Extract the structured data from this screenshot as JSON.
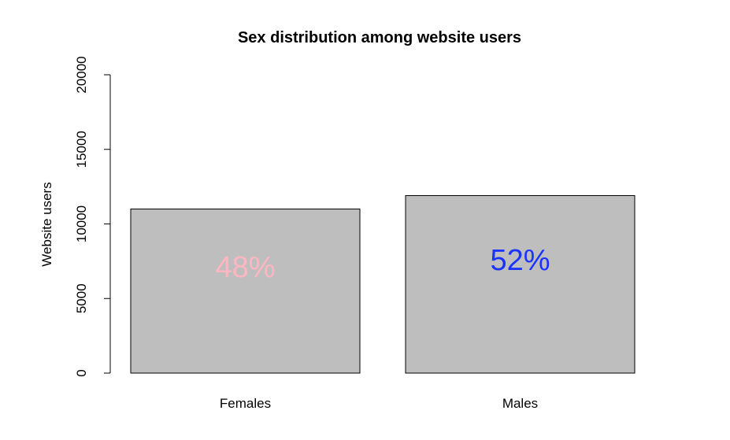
{
  "chart_data": {
    "type": "bar",
    "title": "Sex distribution among website users",
    "xlabel": "",
    "ylabel": "Website users",
    "categories": [
      "Females",
      "Males"
    ],
    "values": [
      11000,
      11900
    ],
    "ylim": [
      0,
      20000
    ],
    "yticks": [
      0,
      5000,
      10000,
      15000,
      20000
    ],
    "bar_color": "#bebebe",
    "bar_labels": [
      {
        "text": "48%",
        "color": "#ffb6c1"
      },
      {
        "text": "52%",
        "color": "#1a33ff"
      }
    ],
    "grid": false,
    "legend": "none"
  }
}
